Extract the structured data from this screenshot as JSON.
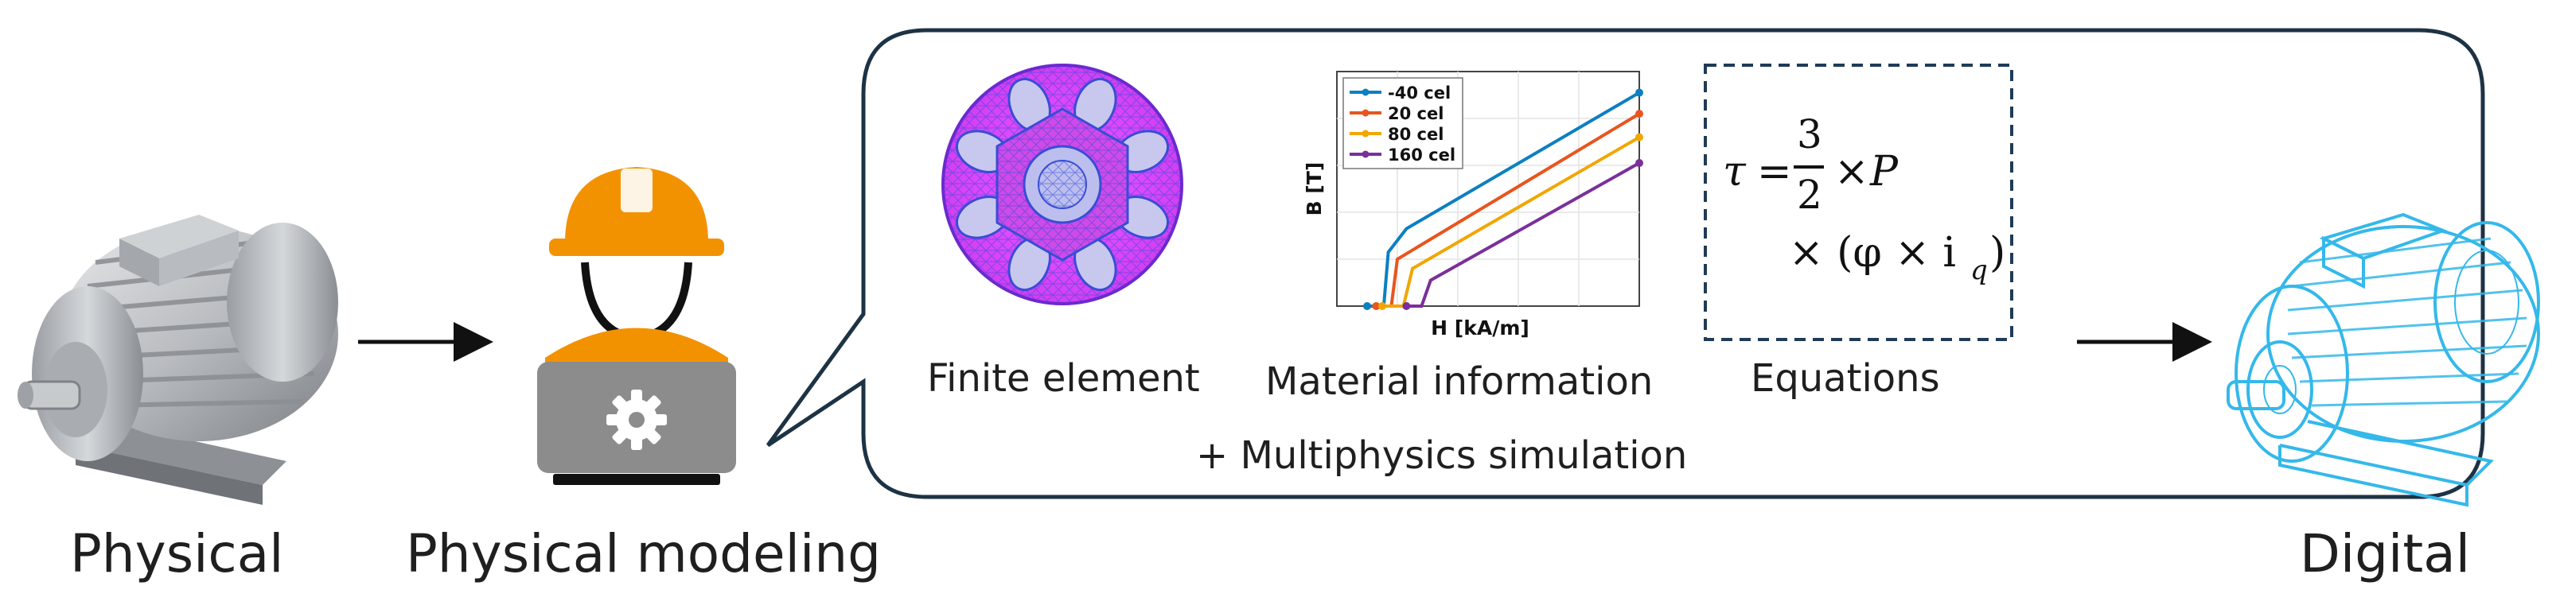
{
  "labels": {
    "physical": "Physical",
    "physical_modeling": "Physical modeling",
    "digital": "Digital",
    "finite_element": "Finite element",
    "material_information": "Material information",
    "equations": "Equations",
    "multiphysics": "+ Multiphysics simulation"
  },
  "equation": {
    "tau": "τ",
    "eq": "=",
    "numerator": "3",
    "denominator": "2",
    "times": "×",
    "p": "P",
    "line2": "× (φ × i",
    "subscript": "q",
    "close": ")"
  },
  "colors": {
    "bubble_border": "#1d3344",
    "motor_gray": "#b9bcc0",
    "helmet": "#f39200",
    "laptop": "#8c8c8c",
    "digital_blue": "#35b8ea",
    "fe_magenta": "#e14bff",
    "fe_blue": "#3a4cd6",
    "equation_box_border": "#1f3b57"
  },
  "chart_data": {
    "type": "line",
    "xlabel": "H [kA/m]",
    "ylabel": "B [T]",
    "xlim": [
      0,
      10
    ],
    "ylim": [
      0,
      10
    ],
    "legend_position": "top-left",
    "grid": true,
    "series": [
      {
        "name": "-40 cel",
        "color": "#0c7fc2",
        "x": [
          1.0,
          1.55,
          1.7,
          2.3,
          10.0
        ],
        "y": [
          0.0,
          0.0,
          2.3,
          3.3,
          9.1
        ]
      },
      {
        "name": "20 cel",
        "color": "#e8551e",
        "x": [
          1.3,
          1.8,
          2.0,
          10.0
        ],
        "y": [
          0.0,
          0.0,
          2.0,
          8.2
        ]
      },
      {
        "name": "80 cel",
        "color": "#f2a600",
        "x": [
          1.5,
          2.2,
          2.5,
          10.0
        ],
        "y": [
          0.0,
          0.0,
          1.6,
          7.2
        ]
      },
      {
        "name": "160 cel",
        "color": "#7a2f9a",
        "x": [
          2.3,
          2.8,
          3.1,
          10.0
        ],
        "y": [
          0.0,
          0.0,
          1.1,
          6.1
        ]
      }
    ]
  }
}
